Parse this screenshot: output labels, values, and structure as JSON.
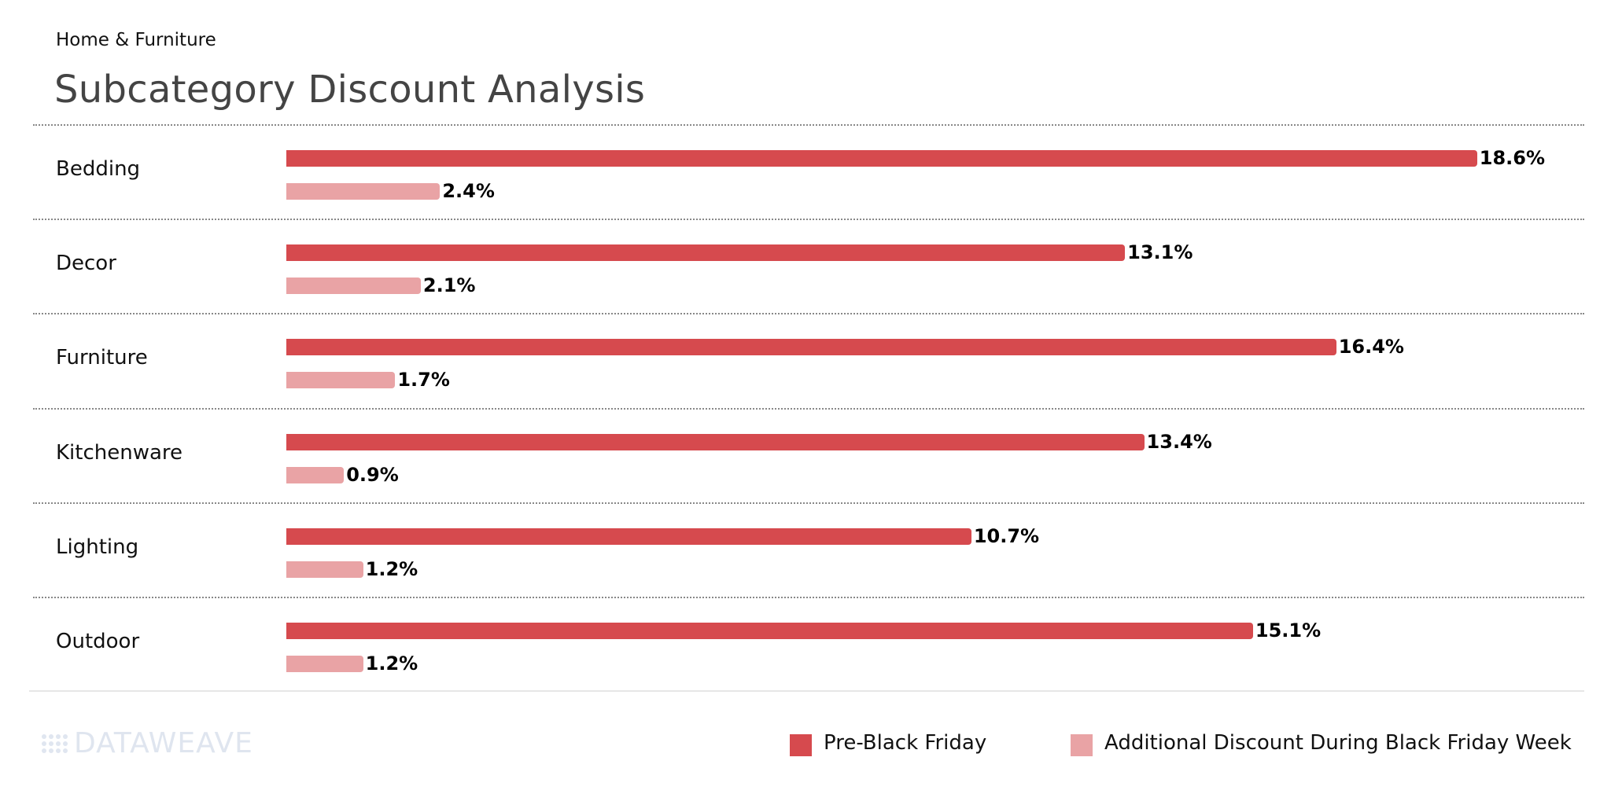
{
  "header": {
    "subtitle": "Home & Furniture",
    "title": "Subcategory Discount Analysis"
  },
  "chart_data": {
    "type": "bar",
    "orientation": "horizontal",
    "title": "Subcategory Discount Analysis",
    "subtitle": "Home & Furniture",
    "categories": [
      "Bedding",
      "Decor",
      "Furniture",
      "Kitchenware",
      "Lighting",
      "Outdoor"
    ],
    "series": [
      {
        "name": "Pre-Black Friday",
        "color": "#d64a4e",
        "values": [
          18.6,
          13.1,
          16.4,
          13.4,
          10.7,
          15.1
        ],
        "labels": [
          "18.6%",
          "13.1%",
          "16.4%",
          "13.4%",
          "10.7%",
          "15.1%"
        ]
      },
      {
        "name": "Additional Discount During Black Friday Week",
        "color": "#e9a3a5",
        "values": [
          2.4,
          2.1,
          1.7,
          0.9,
          1.2,
          1.2
        ],
        "labels": [
          "2.4%",
          "2.1%",
          "1.7%",
          "0.9%",
          "1.2%",
          "1.2%"
        ]
      }
    ],
    "xlim": [
      0,
      19.5
    ],
    "grid": "dotted row separators",
    "legend": "bottom-right"
  },
  "logo": {
    "text": "DATAWEAVE"
  }
}
